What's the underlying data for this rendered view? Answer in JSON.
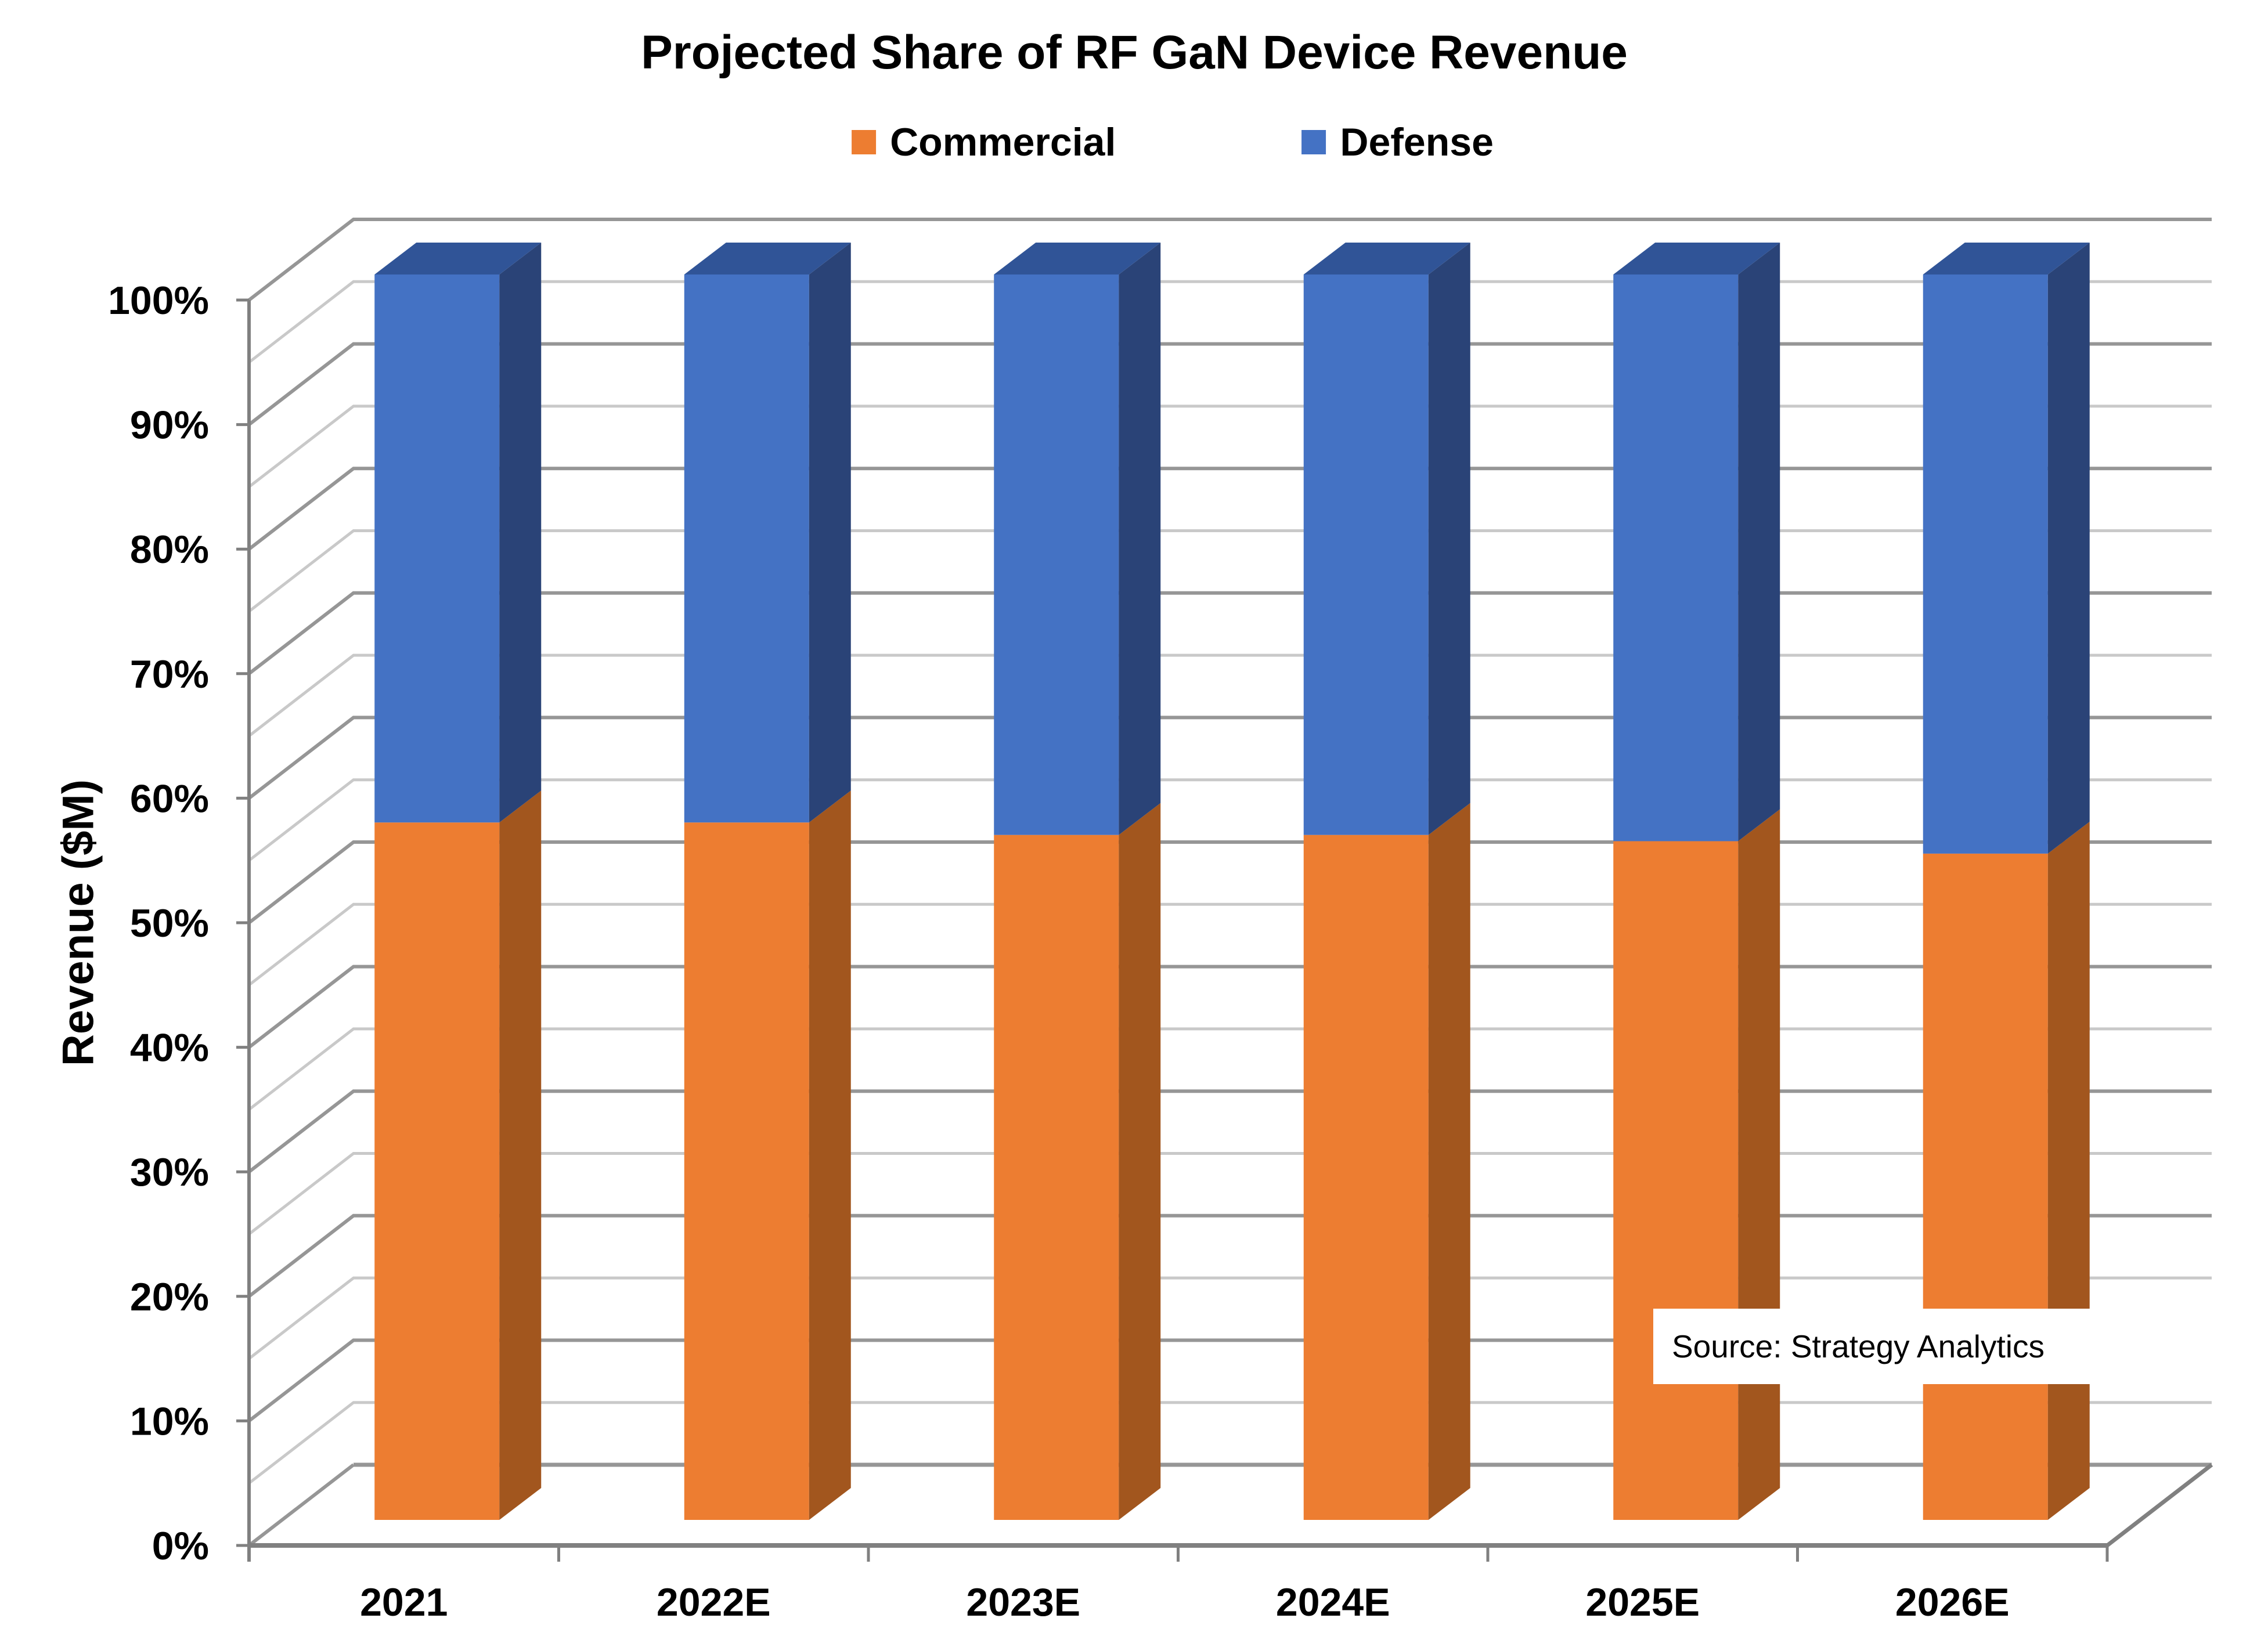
{
  "title": "Projected Share of RF GaN Device Revenue",
  "legend": {
    "items": [
      {
        "label": "Commercial",
        "color": "#ED7D31"
      },
      {
        "label": "Defense",
        "color": "#4472C4"
      }
    ]
  },
  "y_axis": {
    "title": "Revenue ($M)",
    "tick_labels": [
      "0%",
      "10%",
      "20%",
      "30%",
      "40%",
      "50%",
      "60%",
      "70%",
      "80%",
      "90%",
      "100%"
    ]
  },
  "x_axis": {
    "categories": [
      "2021",
      "2022E",
      "2023E",
      "2024E",
      "2025E",
      "2026E"
    ]
  },
  "source_note": "Source: Strategy Analytics",
  "colors": {
    "commercial_front": "#ED7D31",
    "commercial_side": "#A2561E",
    "defense_front": "#4472C4",
    "defense_side": "#2A4377",
    "defense_top": "#305497",
    "grid_major": "#969696",
    "grid_minor": "#C9C9C9",
    "axis_line": "#808080",
    "text": "#000000"
  },
  "chart_data": {
    "type": "bar",
    "subtype": "3d-stacked-column",
    "stacked": true,
    "unit": "percent",
    "title": "Projected Share of RF GaN Device Revenue",
    "xlabel": "",
    "ylabel": "Revenue ($M)",
    "categories": [
      "2021",
      "2022E",
      "2023E",
      "2024E",
      "2025E",
      "2026E"
    ],
    "series": [
      {
        "name": "Commercial",
        "color": "#ED7D31",
        "values": [
          56,
          56,
          55,
          55,
          54.5,
          53.5
        ]
      },
      {
        "name": "Defense",
        "color": "#4472C4",
        "values": [
          44,
          44,
          45,
          45,
          45.5,
          46.5
        ]
      }
    ],
    "ylim": [
      0,
      100
    ],
    "y_tick_step": 10,
    "gridline_step": 5,
    "grid": true,
    "legend_position": "top-center",
    "annotations": [
      "Source: Strategy Analytics"
    ]
  }
}
